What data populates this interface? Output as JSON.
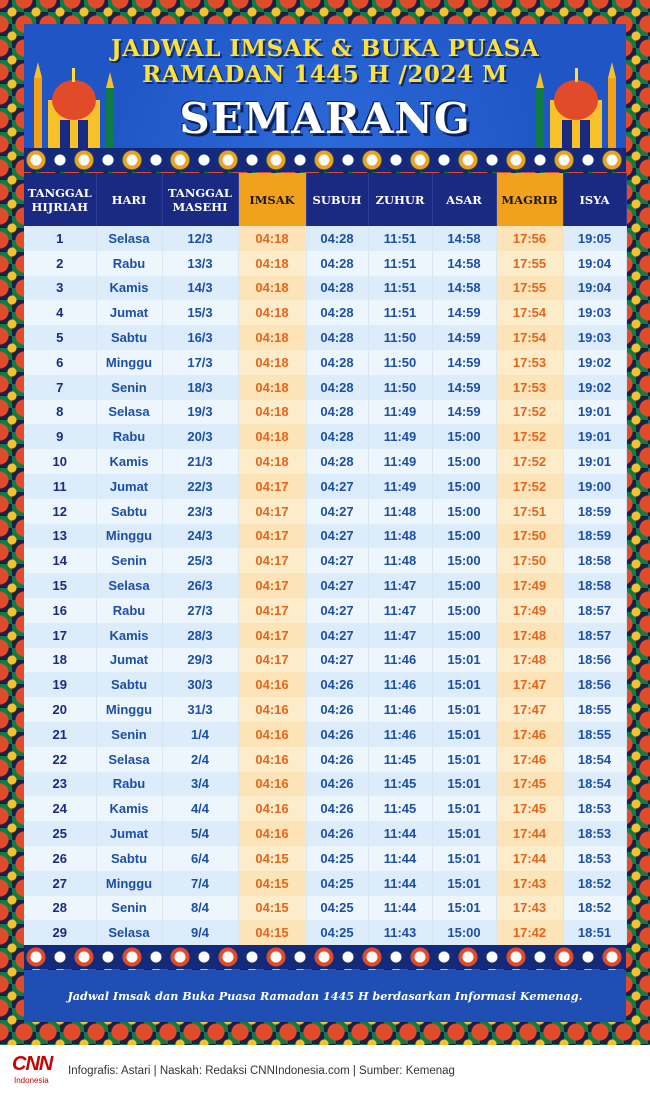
{
  "header": {
    "title_line1": "JADWAL IMSAK & BUKA PUASA",
    "title_line2": "RAMADAN 1445 H /2024 M",
    "city": "SEMARANG"
  },
  "table": {
    "columns": {
      "hijri": "TANGGAL HIJRIAH",
      "hari": "HARI",
      "masehi": "TANGGAL MASEHI",
      "imsak": "IMSAK",
      "subuh": "SUBUH",
      "zuhur": "ZUHUR",
      "asar": "ASAR",
      "magrib": "MAGRIB",
      "isya": "ISYA"
    },
    "rows": [
      [
        "1",
        "Selasa",
        "12/3",
        "04:18",
        "04:28",
        "11:51",
        "14:58",
        "17:56",
        "19:05"
      ],
      [
        "2",
        "Rabu",
        "13/3",
        "04:18",
        "04:28",
        "11:51",
        "14:58",
        "17:55",
        "19:04"
      ],
      [
        "3",
        "Kamis",
        "14/3",
        "04:18",
        "04:28",
        "11:51",
        "14:58",
        "17:55",
        "19:04"
      ],
      [
        "4",
        "Jumat",
        "15/3",
        "04:18",
        "04:28",
        "11:51",
        "14:59",
        "17:54",
        "19:03"
      ],
      [
        "5",
        "Sabtu",
        "16/3",
        "04:18",
        "04:28",
        "11:50",
        "14:59",
        "17:54",
        "19:03"
      ],
      [
        "6",
        "Minggu",
        "17/3",
        "04:18",
        "04:28",
        "11:50",
        "14:59",
        "17:53",
        "19:02"
      ],
      [
        "7",
        "Senin",
        "18/3",
        "04:18",
        "04:28",
        "11:50",
        "14:59",
        "17:53",
        "19:02"
      ],
      [
        "8",
        "Selasa",
        "19/3",
        "04:18",
        "04:28",
        "11:49",
        "14:59",
        "17:52",
        "19:01"
      ],
      [
        "9",
        "Rabu",
        "20/3",
        "04:18",
        "04:28",
        "11:49",
        "15:00",
        "17:52",
        "19:01"
      ],
      [
        "10",
        "Kamis",
        "21/3",
        "04:18",
        "04:28",
        "11:49",
        "15:00",
        "17:52",
        "19:01"
      ],
      [
        "11",
        "Jumat",
        "22/3",
        "04:17",
        "04:27",
        "11:49",
        "15:00",
        "17:52",
        "19:00"
      ],
      [
        "12",
        "Sabtu",
        "23/3",
        "04:17",
        "04:27",
        "11:48",
        "15:00",
        "17:51",
        "18:59"
      ],
      [
        "13",
        "Minggu",
        "24/3",
        "04:17",
        "04:27",
        "11:48",
        "15:00",
        "17:50",
        "18:59"
      ],
      [
        "14",
        "Senin",
        "25/3",
        "04:17",
        "04:27",
        "11:48",
        "15:00",
        "17:50",
        "18:58"
      ],
      [
        "15",
        "Selasa",
        "26/3",
        "04:17",
        "04:27",
        "11:47",
        "15:00",
        "17:49",
        "18:58"
      ],
      [
        "16",
        "Rabu",
        "27/3",
        "04:17",
        "04:27",
        "11:47",
        "15:00",
        "17:49",
        "18:57"
      ],
      [
        "17",
        "Kamis",
        "28/3",
        "04:17",
        "04:27",
        "11:47",
        "15:00",
        "17:48",
        "18:57"
      ],
      [
        "18",
        "Jumat",
        "29/3",
        "04:17",
        "04:27",
        "11:46",
        "15:01",
        "17:48",
        "18:56"
      ],
      [
        "19",
        "Sabtu",
        "30/3",
        "04:16",
        "04:26",
        "11:46",
        "15:01",
        "17:47",
        "18:56"
      ],
      [
        "20",
        "Minggu",
        "31/3",
        "04:16",
        "04:26",
        "11:46",
        "15:01",
        "17:47",
        "18:55"
      ],
      [
        "21",
        "Senin",
        "1/4",
        "04:16",
        "04:26",
        "11:46",
        "15:01",
        "17:46",
        "18:55"
      ],
      [
        "22",
        "Selasa",
        "2/4",
        "04:16",
        "04:26",
        "11:45",
        "15:01",
        "17:46",
        "18:54"
      ],
      [
        "23",
        "Rabu",
        "3/4",
        "04:16",
        "04:26",
        "11:45",
        "15:01",
        "17:45",
        "18:54"
      ],
      [
        "24",
        "Kamis",
        "4/4",
        "04:16",
        "04:26",
        "11:45",
        "15:01",
        "17:45",
        "18:53"
      ],
      [
        "25",
        "Jumat",
        "5/4",
        "04:16",
        "04:26",
        "11:44",
        "15:01",
        "17:44",
        "18:53"
      ],
      [
        "26",
        "Sabtu",
        "6/4",
        "04:15",
        "04:25",
        "11:44",
        "15:01",
        "17:44",
        "18:53"
      ],
      [
        "27",
        "Minggu",
        "7/4",
        "04:15",
        "04:25",
        "11:44",
        "15:01",
        "17:43",
        "18:52"
      ],
      [
        "28",
        "Senin",
        "8/4",
        "04:15",
        "04:25",
        "11:44",
        "15:01",
        "17:43",
        "18:52"
      ],
      [
        "29",
        "Selasa",
        "9/4",
        "04:15",
        "04:25",
        "11:43",
        "15:00",
        "17:42",
        "18:51"
      ]
    ]
  },
  "note": "Jadwal Imsak dan Buka Puasa Ramadan 1445 H berdasarkan Informasi Kemenag.",
  "footer": {
    "logo_text": "CNN",
    "logo_sub": "Indonesia",
    "credits": "Infografis: Astari | Naskah: Redaksi CNNIndonesia.com | Sumber: Kemenag"
  },
  "colors": {
    "frame_blue": "#1f4fb2",
    "header_dark": "#1a2a82",
    "title_yellow": "#ffe03a",
    "highlight_orange": "#f2a11d",
    "highlight_text": "#e8641a",
    "cell_blue_text": "#1c4fa8"
  },
  "icons": [
    "mosque-icon-left",
    "mosque-icon-right",
    "ornament-pattern"
  ]
}
